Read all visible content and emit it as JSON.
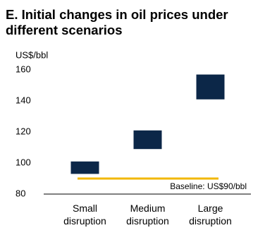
{
  "chart_data": {
    "type": "range_bar",
    "title": "E. Initial changes in oil prices under different scenarios",
    "y_label": "US$/bbl",
    "categories": [
      "Small\ndisruption",
      "Medium\ndisruption",
      "Large\ndisruption"
    ],
    "low": [
      93,
      109,
      141
    ],
    "high": [
      101,
      121,
      157
    ],
    "color": "#0c2748",
    "ylim": [
      80,
      160
    ],
    "yticks": [
      80,
      100,
      120,
      140,
      160
    ],
    "baseline": {
      "value": 90,
      "label": "Baseline: US$90/bbl",
      "color": "#f2b705"
    }
  }
}
